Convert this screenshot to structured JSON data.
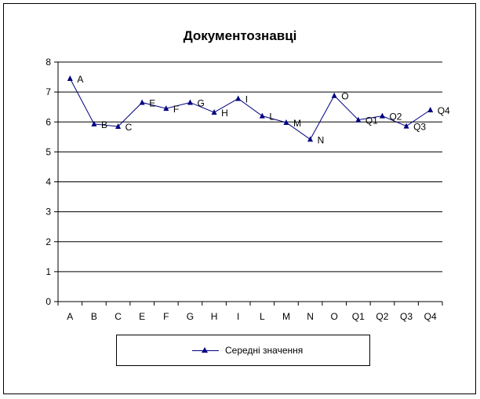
{
  "chart_data": {
    "type": "line",
    "title": "Документознавці",
    "xlabel": "",
    "ylabel": "",
    "ylim": [
      0,
      8
    ],
    "yticks": [
      "0",
      "1",
      "2",
      "3",
      "4",
      "5",
      "6",
      "7",
      "8"
    ],
    "categories": [
      "A",
      "B",
      "C",
      "E",
      "F",
      "G",
      "H",
      "I",
      "L",
      "M",
      "N",
      "O",
      "Q1",
      "Q2",
      "Q3",
      "Q4"
    ],
    "series": [
      {
        "name": "Середні значення",
        "color": "#000080",
        "marker": "triangle",
        "values": [
          7.45,
          5.93,
          5.85,
          6.65,
          6.45,
          6.65,
          6.32,
          6.78,
          6.2,
          5.98,
          5.42,
          6.88,
          6.07,
          6.2,
          5.86,
          6.4
        ]
      }
    ],
    "data_labels": [
      "A",
      "B",
      "C",
      "E",
      "F",
      "G",
      "H",
      "I",
      "L",
      "M",
      "N",
      "O",
      "Q1",
      "Q2",
      "Q3",
      "Q4"
    ],
    "grid": "horizontal",
    "legend": "bottom"
  }
}
